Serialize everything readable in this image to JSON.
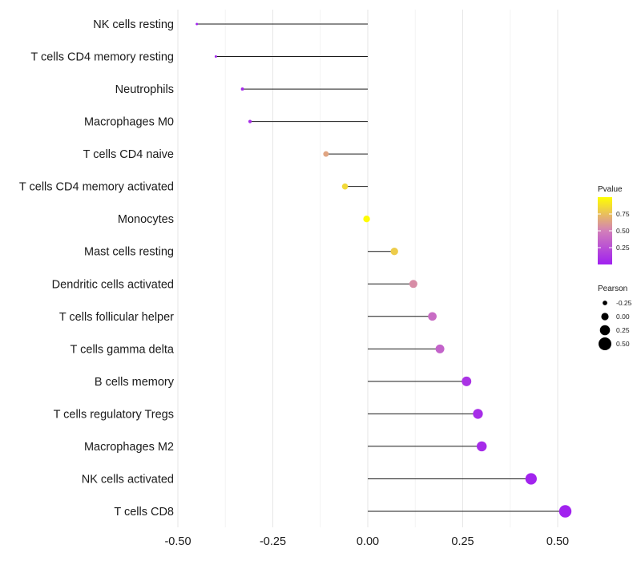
{
  "chart_data": {
    "type": "lollipop",
    "orientation": "horizontal",
    "xlim": [
      -0.5,
      0.53
    ],
    "x_ticks": [
      -0.5,
      -0.25,
      0.0,
      0.25,
      0.5
    ],
    "x_tick_labels": [
      "-0.50",
      "-0.25",
      "0.00",
      "0.25",
      "0.50"
    ],
    "baseline": 0,
    "grid": "vertical-major-minor",
    "categories": [
      "NK cells resting",
      "T cells CD4 memory resting",
      "Neutrophils",
      "Macrophages M0",
      "T cells CD4 naive",
      "T cells CD4 memory activated",
      "Monocytes",
      "Mast cells resting",
      "Dendritic cells activated",
      "T cells follicular helper",
      "T cells gamma delta",
      "B cells memory",
      "T cells regulatory  Tregs",
      "Macrophages M2",
      "NK cells activated",
      "T cells CD8"
    ],
    "pearson": [
      -0.45,
      -0.4,
      -0.33,
      -0.31,
      -0.11,
      -0.06,
      -0.003,
      0.07,
      0.12,
      0.17,
      0.19,
      0.26,
      0.29,
      0.3,
      0.43,
      0.52
    ],
    "pvalue": [
      0.01,
      0.02,
      0.05,
      0.07,
      0.65,
      0.85,
      0.99,
      0.8,
      0.55,
      0.4,
      0.35,
      0.1,
      0.07,
      0.06,
      0.02,
      0.01
    ],
    "color_legend": {
      "title": "Pvalue",
      "range": [
        0,
        1
      ],
      "breaks": [
        0.25,
        0.5,
        0.75
      ],
      "labels": [
        "0.25",
        "0.50",
        "0.75"
      ],
      "low_color": "#a020f0",
      "mid_color": "#d27fb9",
      "high_color": "#ffff00",
      "position": "right"
    },
    "size_legend": {
      "title": "Pearson",
      "breaks": [
        -0.25,
        0.0,
        0.25,
        0.5
      ],
      "labels": [
        "-0.25",
        "0.00",
        "0.25",
        "0.50"
      ],
      "position": "right"
    }
  }
}
